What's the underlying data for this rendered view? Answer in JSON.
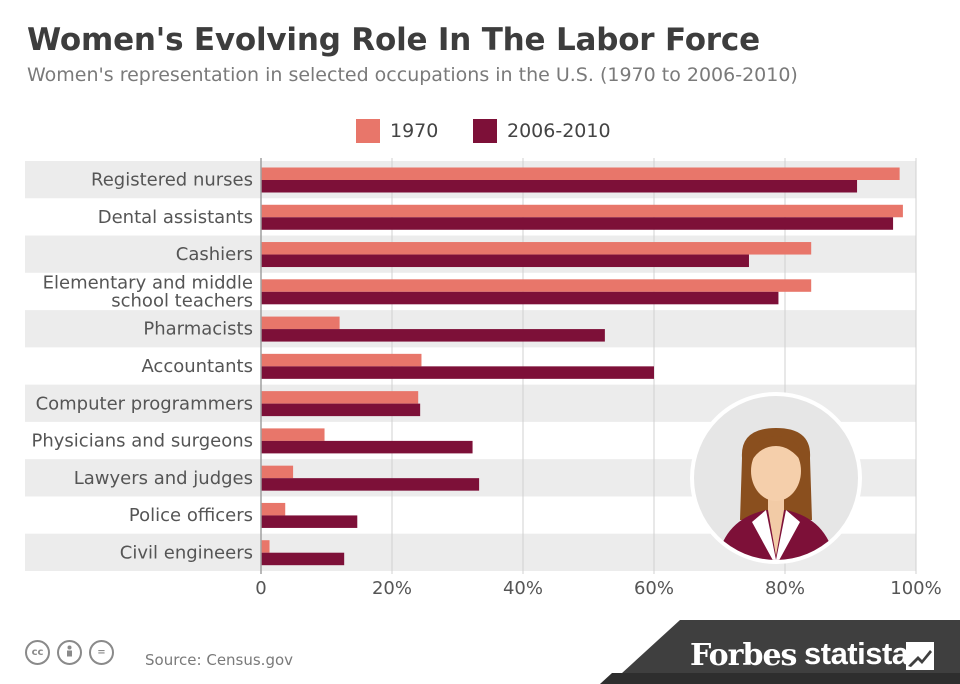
{
  "header": {
    "title": "Women's Evolving Role In The Labor Force",
    "subtitle": "Women's representation in selected occupations in the U.S. (1970 to 2006-2010)"
  },
  "chart_data": {
    "type": "bar",
    "orientation": "horizontal",
    "title": "Women's Evolving Role In The Labor Force",
    "subtitle": "Women's representation in selected occupations in the U.S. (1970 to 2006-2010)",
    "categories": [
      [
        "Registered nurses"
      ],
      [
        "Dental assistants"
      ],
      [
        "Cashiers"
      ],
      [
        "Elementary and middle",
        "school teachers"
      ],
      [
        "Pharmacists"
      ],
      [
        "Accountants"
      ],
      [
        "Computer programmers"
      ],
      [
        "Physicians and surgeons"
      ],
      [
        "Lawyers and judges"
      ],
      [
        "Police officers"
      ],
      [
        "Civil engineers"
      ]
    ],
    "series": [
      {
        "name": "1970",
        "color": "#e8766a",
        "values": [
          97.5,
          98,
          84,
          84,
          12,
          24.5,
          24,
          9.7,
          4.9,
          3.7,
          1.3
        ]
      },
      {
        "name": "2006-2010",
        "color": "#7d1038",
        "values": [
          91,
          96.5,
          74.5,
          79,
          52.5,
          60,
          24.3,
          32.3,
          33.3,
          14.7,
          12.7
        ]
      }
    ],
    "xlim": [
      0,
      100
    ],
    "xticks": [
      "0",
      "20%",
      "40%",
      "60%",
      "80%",
      "100%"
    ],
    "xtick_values": [
      0,
      20,
      40,
      60,
      80,
      100
    ],
    "grid": true,
    "legend": "top-center"
  },
  "footer": {
    "source": "Source: Census.gov",
    "cc_icons": [
      "cc",
      "by",
      "="
    ],
    "brand_forbes": "Forbes",
    "brand_statista": "statista"
  }
}
